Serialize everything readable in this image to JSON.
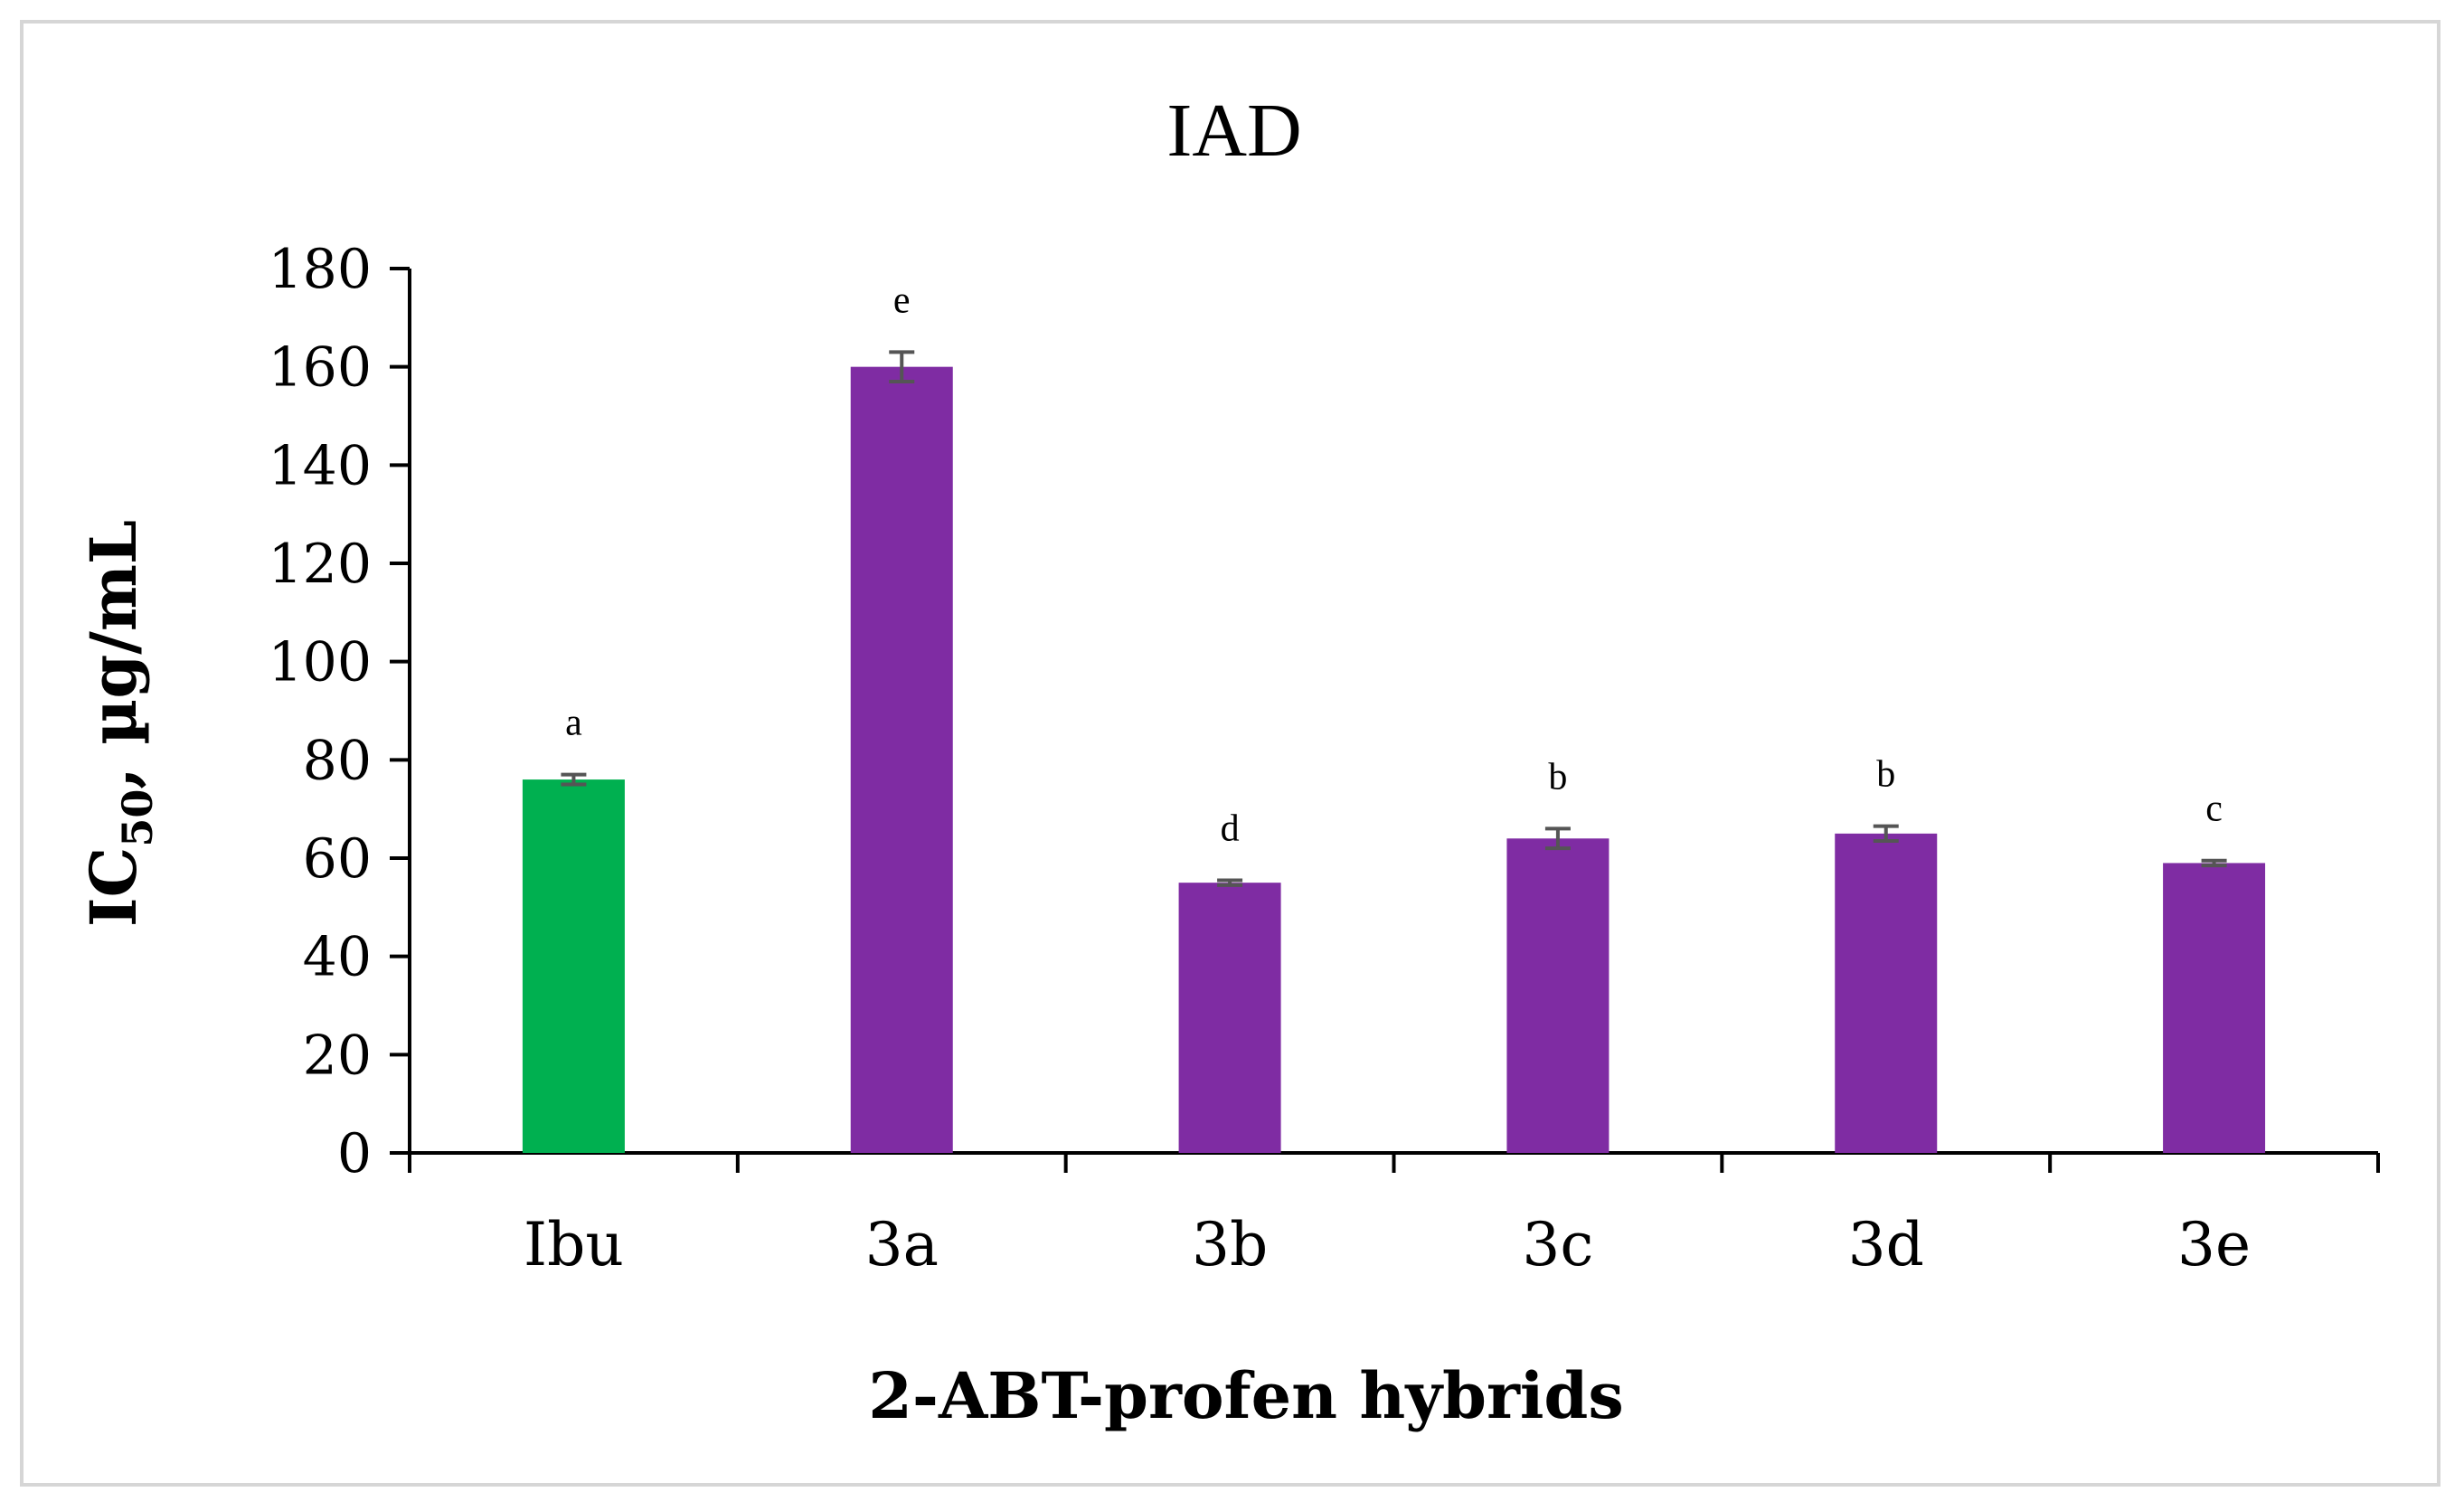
{
  "chart_data": {
    "type": "bar",
    "title": "IAD",
    "xlabel": "2-ABT-profen hybrids",
    "ylabel": {
      "main": "IC",
      "sub": "50",
      "rest": ", µg/mL"
    },
    "categories": [
      "Ibu",
      "3a",
      "3b",
      "3c",
      "3d",
      "3e"
    ],
    "values": [
      76,
      160,
      55,
      64,
      65,
      59
    ],
    "errors": [
      1,
      3,
      0.5,
      2,
      1.5,
      0.5
    ],
    "significance": [
      "a",
      "e",
      "d",
      "b",
      "b",
      "c"
    ],
    "colors": [
      "#00b050",
      "#7f2ca3",
      "#7f2ca3",
      "#7f2ca3",
      "#7f2ca3",
      "#7f2ca3"
    ],
    "ylim": [
      0,
      180
    ],
    "yticks": [
      0,
      20,
      40,
      60,
      80,
      100,
      120,
      140,
      160,
      180
    ],
    "grid": false,
    "error_bar_color": "#555555"
  }
}
